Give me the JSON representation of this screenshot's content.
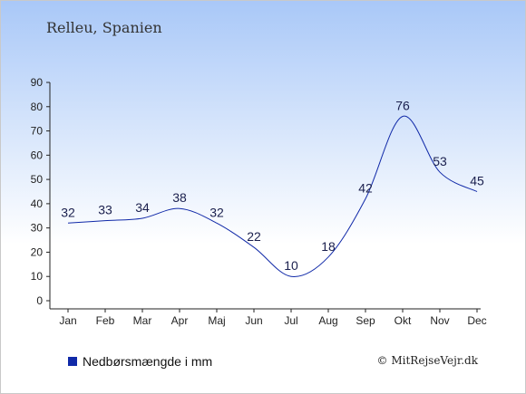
{
  "header": {
    "title": "Relleu, Spanien"
  },
  "legend": {
    "label": "Nedbørsmængde i mm",
    "swatch_color": "#1029a8"
  },
  "footer": {
    "copyright": "© MitRejseVejr.dk"
  },
  "chart_data": {
    "type": "line",
    "categories": [
      "Jan",
      "Feb",
      "Mar",
      "Apr",
      "Maj",
      "Jun",
      "Jul",
      "Aug",
      "Sep",
      "Okt",
      "Nov",
      "Dec"
    ],
    "series": [
      {
        "name": "Nedbørsmængde i mm",
        "values": [
          32,
          33,
          34,
          38,
          32,
          22,
          10,
          18,
          42,
          76,
          53,
          45
        ],
        "color": "#1029a8"
      }
    ],
    "y_ticks": [
      0,
      10,
      20,
      30,
      40,
      50,
      60,
      70,
      80,
      90
    ],
    "ylim": [
      0,
      90
    ],
    "title": "Relleu, Spanien",
    "xlabel": "",
    "ylabel": "",
    "grid": false,
    "legend_position": "bottom-left"
  }
}
